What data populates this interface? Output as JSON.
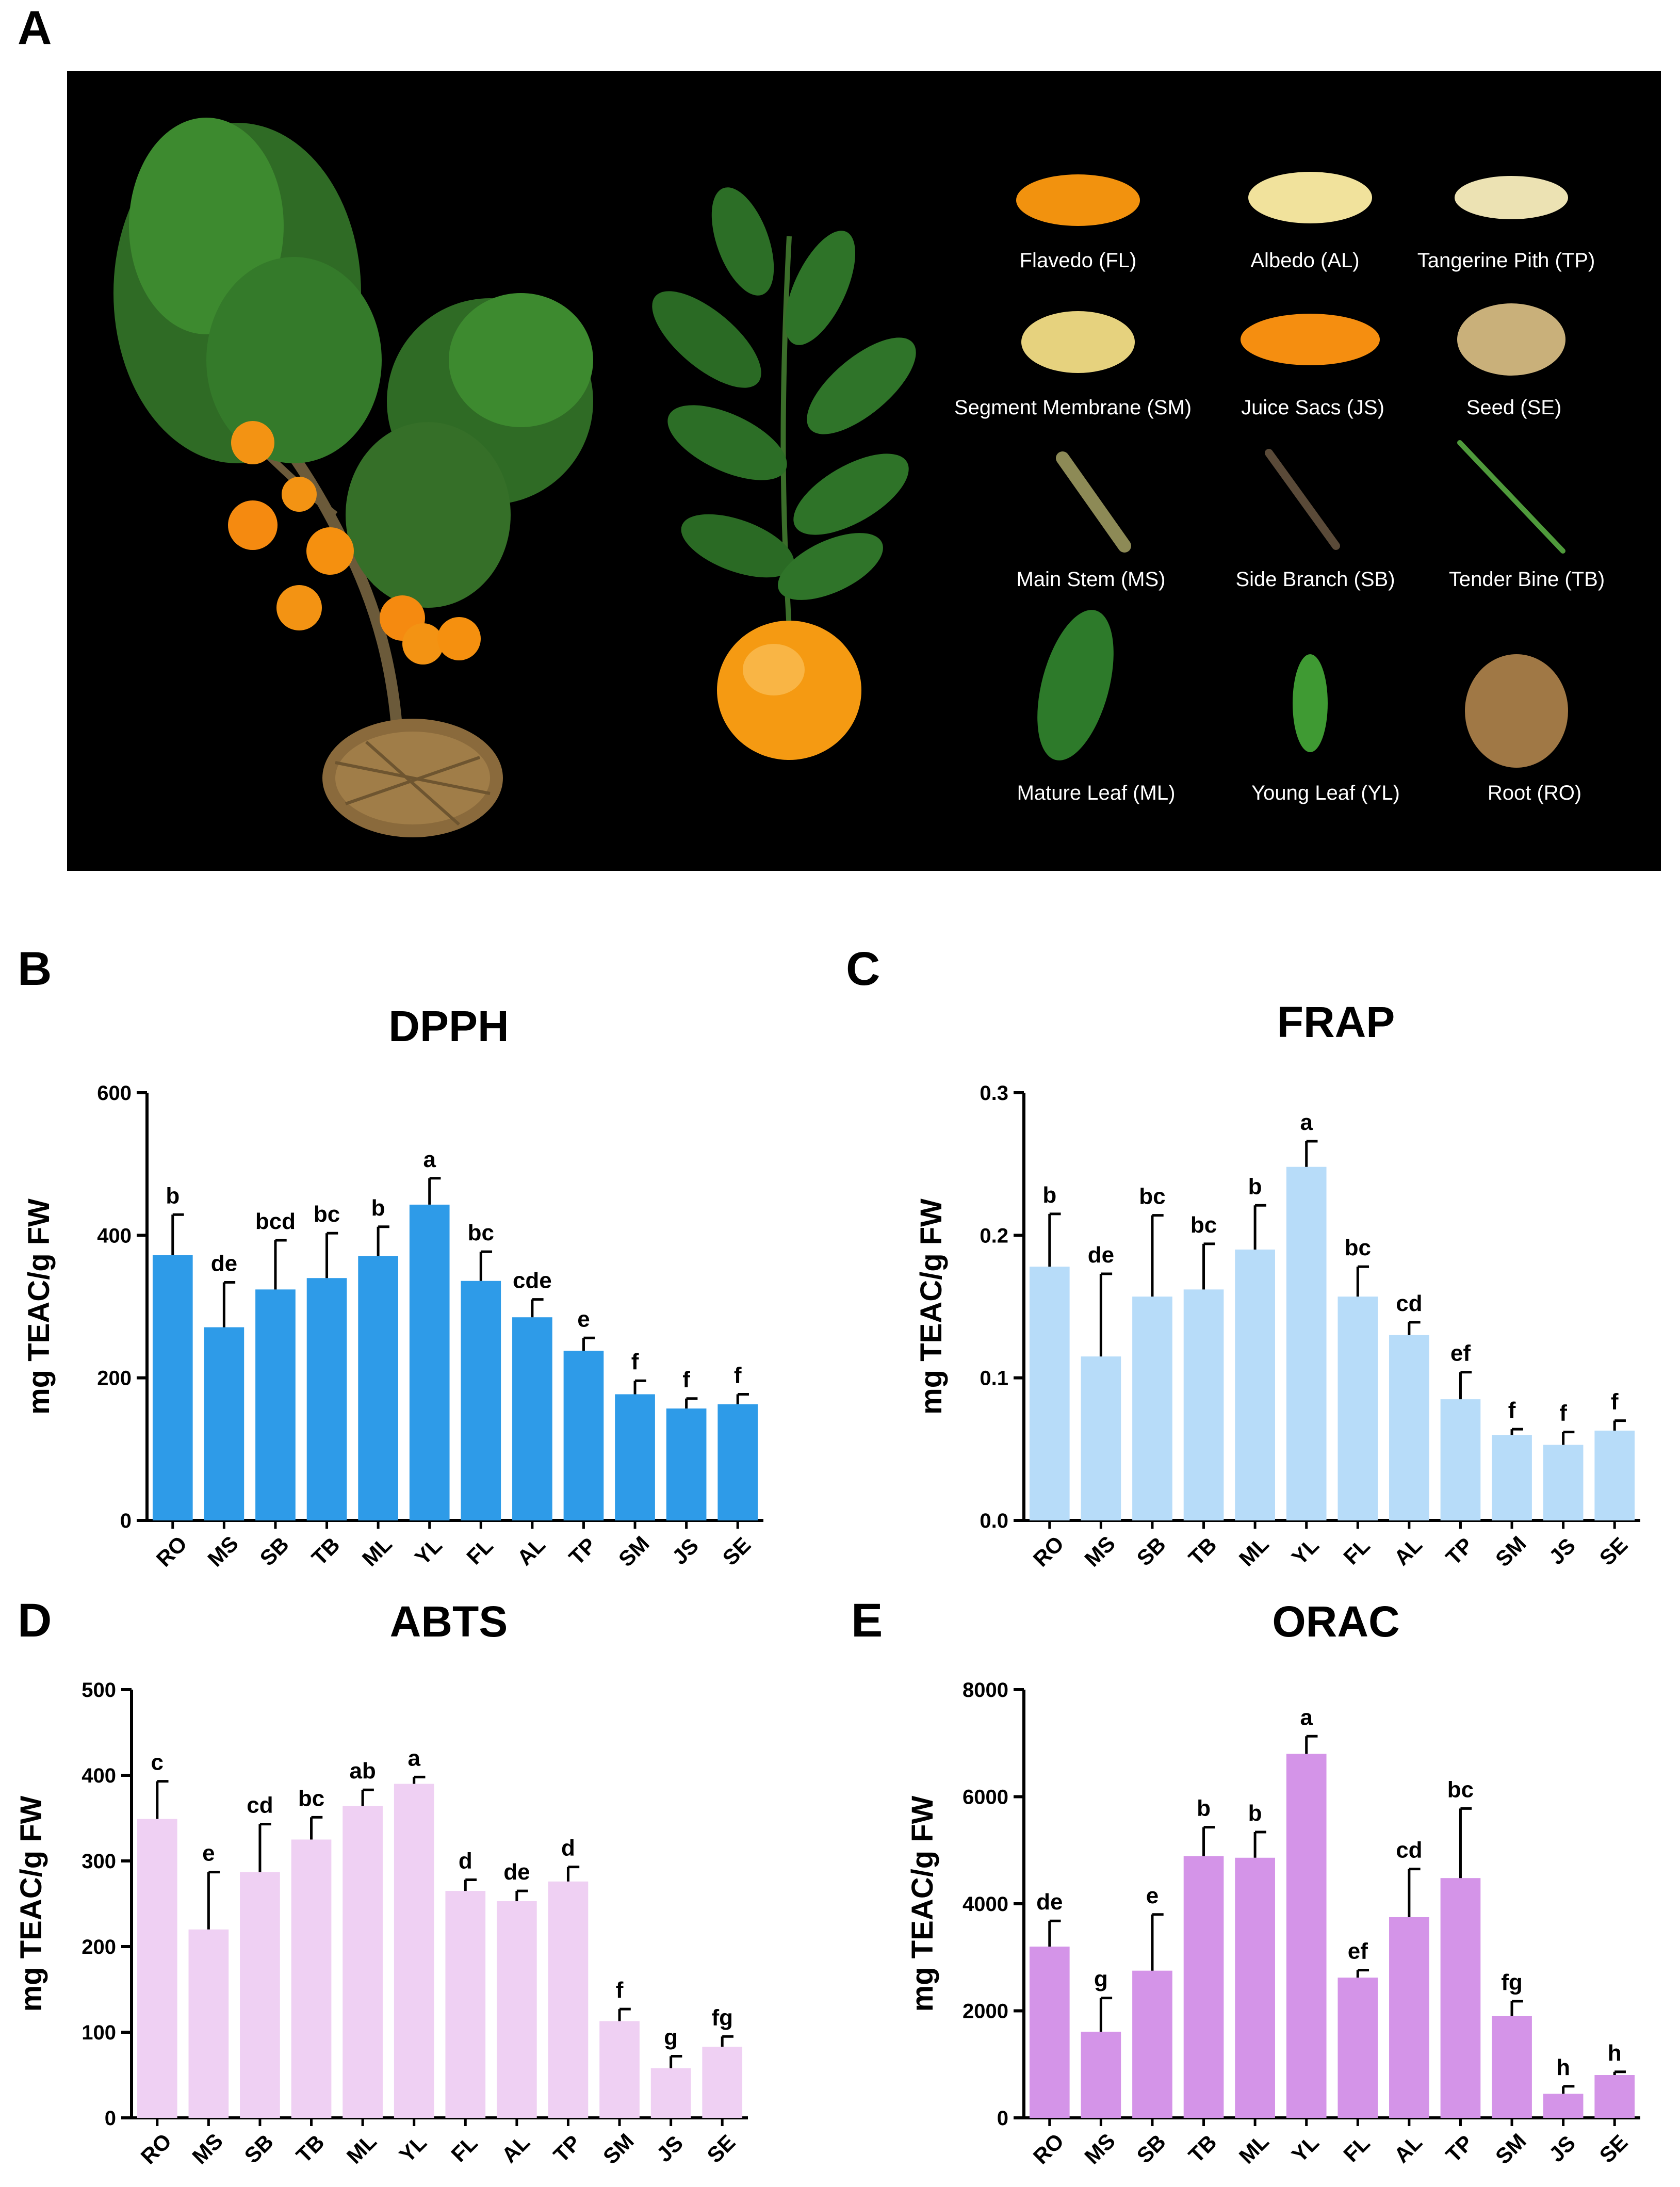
{
  "panels": {
    "a": "A",
    "b": "B",
    "c": "C",
    "d": "D",
    "e": "E"
  },
  "photo_labels": {
    "fl": "Flavedo (FL)",
    "al": "Albedo (AL)",
    "tp": "Tangerine Pith (TP)",
    "sm": "Segment Membrane (SM)",
    "js": "Juice Sacs (JS)",
    "se": "Seed (SE)",
    "ms": "Main Stem (MS)",
    "sb": "Side Branch (SB)",
    "tb": "Tender Bine (TB)",
    "ml": "Mature Leaf (ML)",
    "yl": "Young Leaf (YL)",
    "ro": "Root (RO)"
  },
  "chart_data": [
    {
      "type": "bar",
      "panel": "B",
      "title": "DPPH",
      "ylabel": "mg TEAC/g FW",
      "xlabel": "",
      "categories": [
        "RO",
        "MS",
        "SB",
        "TB",
        "ML",
        "YL",
        "FL",
        "AL",
        "TP",
        "SM",
        "JS",
        "SE"
      ],
      "values": [
        372,
        271,
        324,
        340,
        371,
        443,
        336,
        285,
        238,
        177,
        157,
        163
      ],
      "errors": [
        57,
        63,
        69,
        63,
        41,
        37,
        41,
        25,
        18,
        19,
        14,
        14
      ],
      "letters": [
        "b",
        "de",
        "bcd",
        "bc",
        "b",
        "a",
        "bc",
        "cde",
        "e",
        "f",
        "f",
        "f"
      ],
      "ylim": [
        0,
        600
      ],
      "yticks": [
        "0",
        "200",
        "400",
        "600"
      ],
      "color": "#2e9be8"
    },
    {
      "type": "bar",
      "panel": "C",
      "title": "FRAP",
      "ylabel": "mg TEAC/g FW",
      "xlabel": "",
      "categories": [
        "RO",
        "MS",
        "SB",
        "TB",
        "ML",
        "YL",
        "FL",
        "AL",
        "TP",
        "SM",
        "JS",
        "SE"
      ],
      "values": [
        0.178,
        0.115,
        0.157,
        0.162,
        0.19,
        0.248,
        0.157,
        0.13,
        0.085,
        0.06,
        0.053,
        0.063
      ],
      "errors": [
        0.037,
        0.058,
        0.057,
        0.032,
        0.031,
        0.018,
        0.021,
        0.009,
        0.019,
        0.004,
        0.009,
        0.007
      ],
      "letters": [
        "b",
        "de",
        "bc",
        "bc",
        "b",
        "a",
        "bc",
        "cd",
        "ef",
        "f",
        "f",
        "f"
      ],
      "ylim": [
        0,
        0.3
      ],
      "yticks": [
        "0.0",
        "0.1",
        "0.2",
        "0.3"
      ],
      "color": "#b7dcf9"
    },
    {
      "type": "bar",
      "panel": "D",
      "title": "ABTS",
      "ylabel": "mg TEAC/g FW",
      "xlabel": "",
      "categories": [
        "RO",
        "MS",
        "SB",
        "TB",
        "ML",
        "YL",
        "FL",
        "AL",
        "TP",
        "SM",
        "JS",
        "SE"
      ],
      "values": [
        349,
        220,
        287,
        325,
        364,
        390,
        265,
        253,
        276,
        113,
        58,
        83
      ],
      "errors": [
        44,
        67,
        56,
        26,
        19,
        8,
        13,
        12,
        17,
        14,
        14,
        12
      ],
      "letters": [
        "c",
        "e",
        "cd",
        "bc",
        "ab",
        "a",
        "d",
        "de",
        "d",
        "f",
        "g",
        "fg"
      ],
      "ylim": [
        0,
        500
      ],
      "yticks": [
        "0",
        "100",
        "200",
        "300",
        "400",
        "500"
      ],
      "color": "#efd0f3"
    },
    {
      "type": "bar",
      "panel": "E",
      "title": "ORAC",
      "ylabel": "mg TEAC/g FW",
      "xlabel": "",
      "categories": [
        "RO",
        "MS",
        "SB",
        "TB",
        "ML",
        "YL",
        "FL",
        "AL",
        "TP",
        "SM",
        "JS",
        "SE"
      ],
      "values": [
        3200,
        1610,
        2750,
        4890,
        4860,
        6800,
        2620,
        3750,
        4480,
        1900,
        450,
        800
      ],
      "errors": [
        480,
        630,
        1050,
        540,
        480,
        330,
        140,
        900,
        1300,
        280,
        140,
        60
      ],
      "letters": [
        "de",
        "g",
        "e",
        "b",
        "b",
        "a",
        "ef",
        "cd",
        "bc",
        "fg",
        "h",
        "h"
      ],
      "ylim": [
        0,
        8000
      ],
      "yticks": [
        "0",
        "2000",
        "4000",
        "6000",
        "8000"
      ],
      "color": "#d494e8"
    }
  ]
}
